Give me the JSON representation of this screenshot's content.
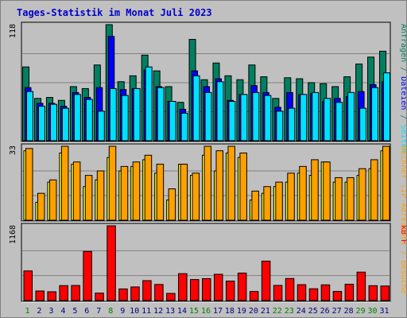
{
  "chart_data": {
    "type": "bar",
    "title": "Tages-Statistik im Monat Juli 2023",
    "categories": [
      "1",
      "2",
      "3",
      "4",
      "5",
      "6",
      "7",
      "8",
      "9",
      "10",
      "11",
      "12",
      "13",
      "14",
      "15",
      "16",
      "17",
      "18",
      "19",
      "20",
      "21",
      "22",
      "23",
      "24",
      "25",
      "26",
      "27",
      "28",
      "29",
      "30",
      "31"
    ],
    "weekend_days": [
      "1",
      "8",
      "15",
      "16",
      "22",
      "23",
      "29",
      "30"
    ],
    "colors": {
      "anfragen": "#008060",
      "dateien": "#0000ff",
      "seiten": "#00e0ff",
      "rechner": "#ffff00",
      "besuche": "#ffa000",
      "kbytes": "#ff0000",
      "weekday_label": "#000080",
      "weekend_label": "#008000",
      "right_label_top": "#008080",
      "right_label_mid": "#ffa000",
      "right_label_bottom": "#ff0000"
    },
    "panels": [
      {
        "id": "requests",
        "max_label": "118",
        "ylim": [
          0,
          118
        ],
        "right_label_parts": [
          {
            "text": "Anfragen",
            "color": "#008060"
          },
          {
            "text": " / ",
            "color": "#008080"
          },
          {
            "text": "Dateien",
            "color": "#0000ff"
          },
          {
            "text": " / ",
            "color": "#008080"
          },
          {
            "text": "Seiten",
            "color": "#00e0ff"
          }
        ],
        "series": [
          {
            "name": "Anfragen",
            "values": [
              75,
              43,
              44,
              41,
              55,
              53,
              77,
              118,
              60,
              66,
              87,
              71,
              55,
              39,
              103,
              62,
              79,
              66,
              62,
              77,
              65,
              43,
              64,
              63,
              59,
              58,
              55,
              65,
              78,
              85,
              91
            ]
          },
          {
            "name": "Dateien",
            "values": [
              54,
              38,
              38,
              35,
              49,
              44,
              54,
              106,
              52,
              53,
              72,
              55,
              40,
              32,
              71,
              55,
              63,
              41,
              47,
              56,
              49,
              34,
              49,
              47,
              48,
              40,
              43,
              45,
              50,
              57,
              60
            ]
          },
          {
            "name": "Seiten",
            "values": [
              50,
              35,
              37,
              33,
              47,
              42,
              30,
              53,
              46,
              53,
              75,
              54,
              40,
              28,
              66,
              49,
              60,
              40,
              47,
              49,
              46,
              30,
              33,
              47,
              49,
              43,
              39,
              49,
              33,
              54,
              69
            ]
          }
        ]
      },
      {
        "id": "visits",
        "max_label": "33",
        "ylim": [
          0,
          33
        ],
        "right_label_parts": [
          {
            "text": "Rechner (IP-Adressen)",
            "color": "#ffa000"
          },
          {
            "text": " / ",
            "color": "#ffa000"
          },
          {
            "text": "Besuche",
            "color": "#ffa000"
          }
        ],
        "series": [
          {
            "name": "Rechner",
            "values": [
              31,
              8,
              17,
              30,
              25,
              15,
              18,
              28,
              22,
              24,
              27,
              21,
              9,
              25,
              20,
              29,
              22,
              30,
              28,
              9,
              12,
              15,
              17,
              21,
              20,
              26,
              17,
              17,
              20,
              23,
              31
            ]
          },
          {
            "name": "Besuche",
            "values": [
              32,
              12,
              18,
              33,
              26,
              20,
              22,
              33,
              24,
              26,
              29,
              25,
              14,
              25,
              21,
              33,
              31,
              33,
              30,
              13,
              15,
              17,
              21,
              24,
              27,
              26,
              19,
              19,
              23,
              27,
              33
            ]
          }
        ]
      },
      {
        "id": "kbytes",
        "max_label": "1168",
        "ylim": [
          0,
          1168
        ],
        "right_label_parts": [
          {
            "text": "kB F",
            "color": "#ff0000"
          }
        ],
        "series": [
          {
            "name": "kB F",
            "values": [
              463,
              149,
              137,
              233,
              235,
              767,
              116,
              1168,
              181,
              212,
              311,
              251,
              111,
              420,
              328,
              342,
              410,
              304,
              429,
              141,
              616,
              236,
              344,
              248,
              184,
              245,
              142,
              255,
              444,
              232,
              227
            ]
          }
        ]
      }
    ]
  }
}
